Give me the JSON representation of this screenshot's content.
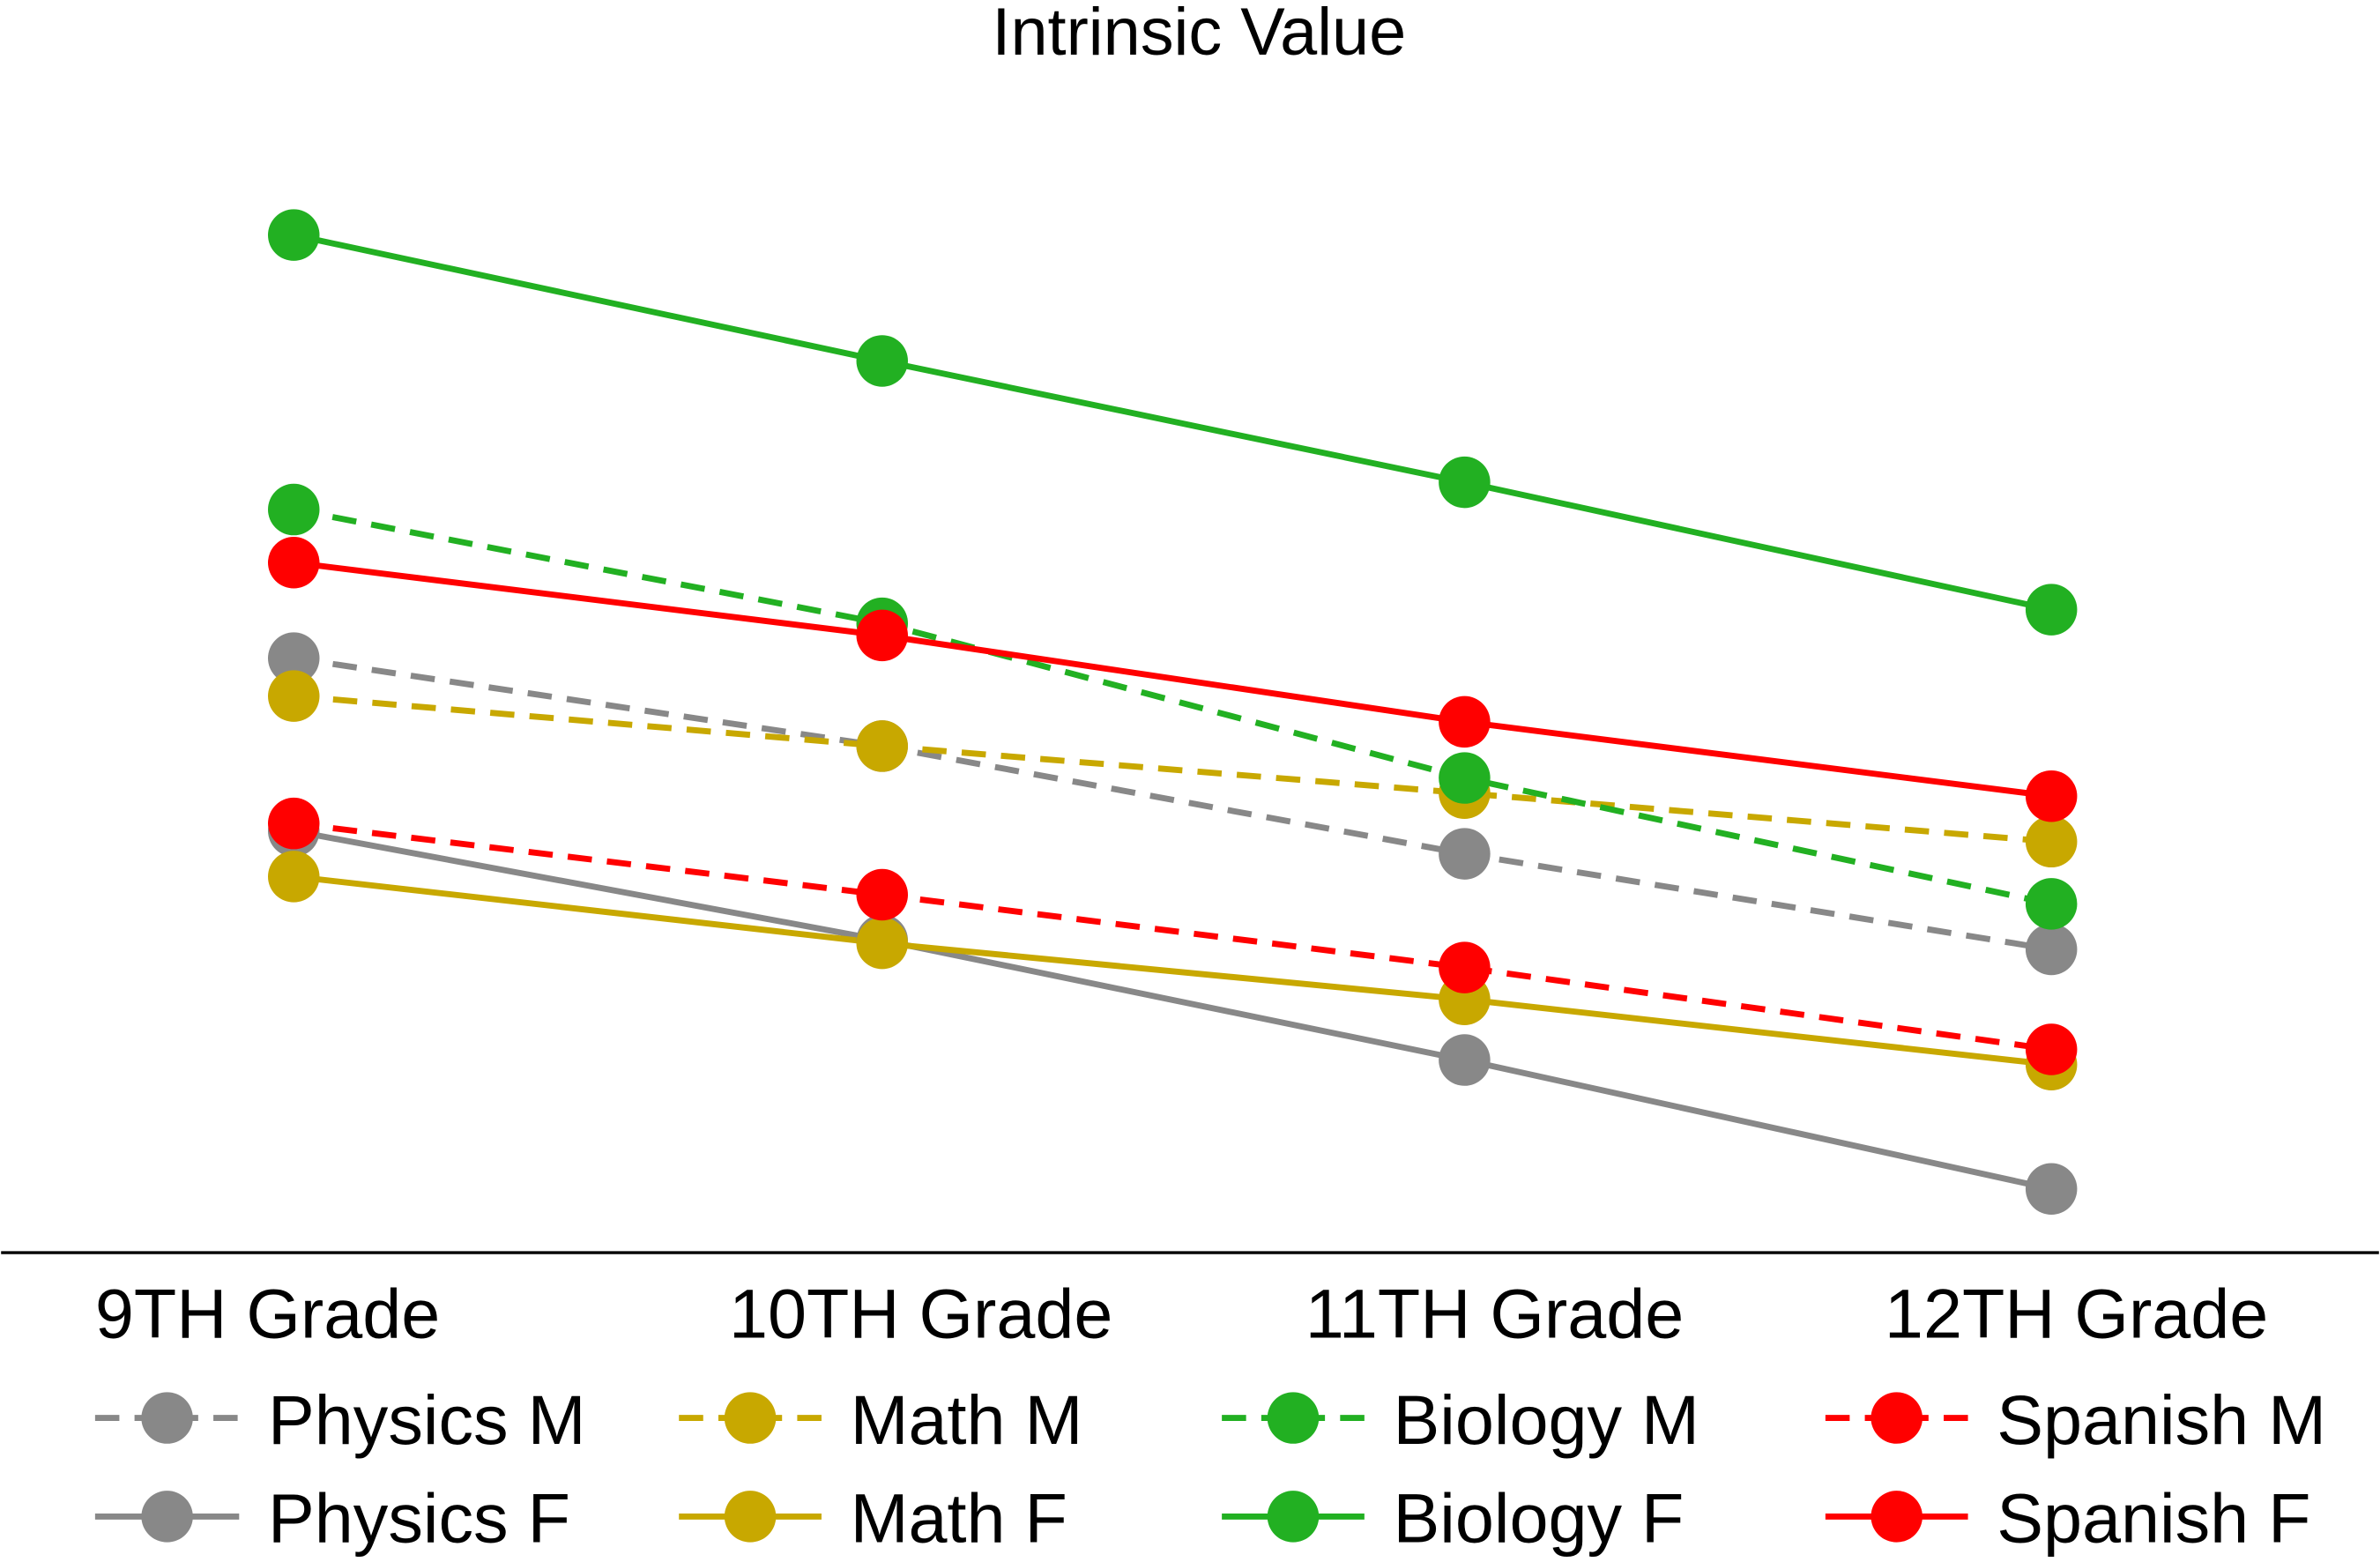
{
  "chart_data": {
    "type": "line",
    "title": "Intrinsic Value",
    "xlabel": "",
    "ylabel": "",
    "categories": [
      "9TH Grade",
      "10TH Grade",
      "11TH Grade",
      "12TH Grade"
    ],
    "grid": false,
    "legend_placement": "bottom",
    "y_axis_shown": false,
    "series": [
      {
        "name": "Physics M",
        "color": "#888888",
        "dashed": true,
        "values": [
          39.2,
          33.4,
          26.3,
          20.0
        ]
      },
      {
        "name": "Physics F",
        "color": "#888888",
        "dashed": false,
        "values": [
          27.8,
          20.6,
          12.7,
          4.2
        ]
      },
      {
        "name": "Math M",
        "color": "#c8a800",
        "dashed": true,
        "values": [
          36.7,
          33.4,
          30.3,
          27.1
        ]
      },
      {
        "name": "Math F",
        "color": "#c8a800",
        "dashed": false,
        "values": [
          24.8,
          20.4,
          16.7,
          12.4
        ]
      },
      {
        "name": "Biology M",
        "color": "#22b022",
        "dashed": true,
        "values": [
          49.0,
          41.5,
          31.3,
          23.0
        ]
      },
      {
        "name": "Biology F",
        "color": "#22b022",
        "dashed": false,
        "values": [
          67.1,
          58.8,
          50.8,
          42.4
        ]
      },
      {
        "name": "Spanish M",
        "color": "#ff0000",
        "dashed": true,
        "values": [
          28.3,
          23.6,
          18.8,
          13.4
        ]
      },
      {
        "name": "Spanish F",
        "color": "#ff0000",
        "dashed": false,
        "values": [
          45.5,
          40.7,
          35.0,
          30.1
        ]
      }
    ]
  }
}
